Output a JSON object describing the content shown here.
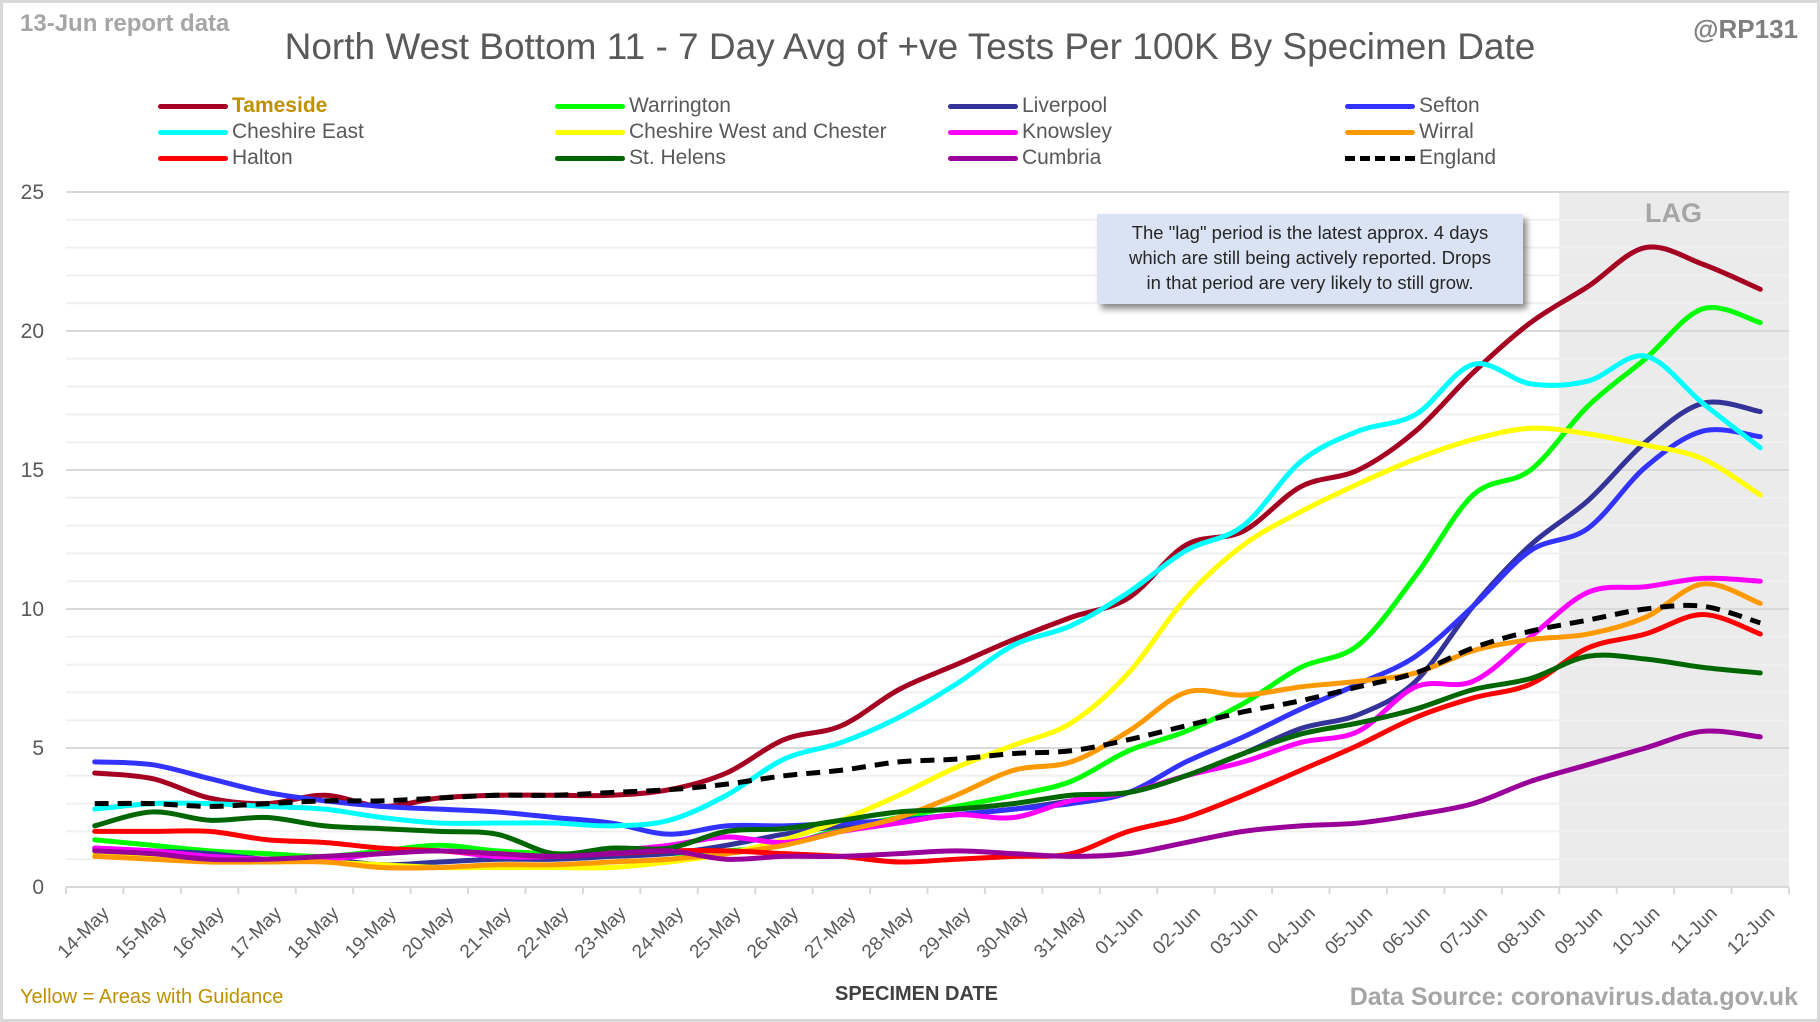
{
  "header": {
    "report_label": "13-Jun report data",
    "handle": "@RP131"
  },
  "annotation": {
    "lines": [
      "The \"lag\" period is the latest approx. 4 days",
      "which are still being actively reported.  Drops",
      "in that period are very likely to still grow."
    ],
    "lag_label": "LAG"
  },
  "footer": {
    "note": "Yellow = Areas with Guidance",
    "source": "Data Source: coronavirus.data.gov.uk"
  },
  "chart_data": {
    "type": "line",
    "title": "North West Bottom 11 - 7 Day Avg of +ve Tests Per 100K By Specimen Date",
    "xlabel": "SPECIMEN DATE",
    "ylabel": "",
    "ylim": [
      0,
      25
    ],
    "yticks": [
      "0",
      "5",
      "10",
      "15",
      "20",
      "25"
    ],
    "grid": true,
    "legend_position": "top",
    "lag_region_start": "09-Jun",
    "categories": [
      "14-May",
      "15-May",
      "16-May",
      "17-May",
      "18-May",
      "19-May",
      "20-May",
      "21-May",
      "22-May",
      "23-May",
      "24-May",
      "25-May",
      "26-May",
      "27-May",
      "28-May",
      "29-May",
      "30-May",
      "31-May",
      "01-Jun",
      "02-Jun",
      "03-Jun",
      "04-Jun",
      "05-Jun",
      "06-Jun",
      "07-Jun",
      "08-Jun",
      "09-Jun",
      "10-Jun",
      "11-Jun",
      "12-Jun"
    ],
    "series": [
      {
        "name": "Tameside",
        "color": "#a50021",
        "highlight": true,
        "values": [
          4.1,
          3.9,
          3.2,
          3.0,
          3.3,
          2.9,
          3.2,
          3.3,
          3.3,
          3.3,
          3.5,
          4.1,
          5.3,
          5.8,
          7.1,
          8.0,
          8.9,
          9.7,
          10.4,
          12.3,
          12.8,
          14.4,
          15.0,
          16.4,
          18.5,
          20.3,
          21.6,
          23.0,
          22.4,
          21.5
        ]
      },
      {
        "name": "Warrington",
        "color": "#00ff00",
        "values": [
          1.7,
          1.5,
          1.3,
          1.2,
          1.1,
          1.3,
          1.5,
          1.3,
          1.2,
          1.2,
          1.2,
          1.3,
          1.5,
          2.1,
          2.5,
          2.9,
          3.3,
          3.8,
          4.9,
          5.6,
          6.6,
          7.9,
          8.7,
          11.2,
          14.1,
          15.0,
          17.3,
          19.0,
          20.8,
          20.3
        ]
      },
      {
        "name": "Liverpool",
        "color": "#333399",
        "values": [
          1.4,
          1.3,
          1.2,
          1.0,
          1.0,
          0.8,
          0.9,
          1.0,
          1.0,
          1.1,
          1.2,
          1.5,
          1.9,
          2.2,
          2.4,
          2.6,
          2.8,
          3.1,
          3.4,
          4.0,
          4.8,
          5.7,
          6.2,
          7.4,
          10.1,
          12.3,
          13.9,
          16.0,
          17.4,
          17.1
        ]
      },
      {
        "name": "Sefton",
        "color": "#3333ff",
        "values": [
          4.5,
          4.4,
          3.9,
          3.4,
          3.1,
          2.9,
          2.8,
          2.7,
          2.5,
          2.3,
          1.9,
          2.2,
          2.2,
          2.3,
          2.4,
          2.6,
          2.8,
          3.0,
          3.4,
          4.5,
          5.4,
          6.4,
          7.3,
          8.3,
          10.1,
          12.1,
          12.9,
          15.1,
          16.4,
          16.2
        ]
      },
      {
        "name": "Cheshire East",
        "color": "#00ffff",
        "values": [
          2.8,
          3.0,
          3.0,
          2.9,
          2.8,
          2.5,
          2.3,
          2.3,
          2.3,
          2.2,
          2.4,
          3.3,
          4.6,
          5.2,
          6.1,
          7.3,
          8.7,
          9.4,
          10.6,
          12.1,
          13.0,
          15.3,
          16.4,
          17.0,
          18.8,
          18.1,
          18.2,
          19.1,
          17.4,
          15.8
        ]
      },
      {
        "name": "Cheshire West and Chester",
        "color": "#ffff00",
        "values": [
          1.2,
          1.1,
          1.0,
          1.0,
          0.9,
          0.8,
          0.7,
          0.7,
          0.7,
          0.7,
          0.9,
          1.2,
          1.7,
          2.4,
          3.3,
          4.3,
          5.1,
          5.9,
          7.7,
          10.4,
          12.3,
          13.5,
          14.5,
          15.4,
          16.1,
          16.5,
          16.3,
          15.9,
          15.4,
          14.1
        ]
      },
      {
        "name": "Knowsley",
        "color": "#ff00ff",
        "values": [
          1.4,
          1.3,
          1.1,
          1.0,
          1.0,
          1.2,
          1.3,
          1.1,
          1.1,
          1.3,
          1.5,
          1.8,
          1.6,
          2.0,
          2.3,
          2.6,
          2.5,
          3.1,
          3.4,
          4.0,
          4.5,
          5.2,
          5.6,
          7.2,
          7.4,
          9.0,
          10.6,
          10.8,
          11.1,
          11.0
        ]
      },
      {
        "name": "Wirral",
        "color": "#ff9900",
        "values": [
          1.1,
          1.0,
          0.9,
          0.9,
          0.9,
          0.7,
          0.7,
          0.8,
          0.8,
          0.9,
          1.0,
          1.2,
          1.5,
          2.0,
          2.5,
          3.3,
          4.2,
          4.5,
          5.6,
          7.0,
          6.9,
          7.2,
          7.4,
          7.7,
          8.5,
          8.9,
          9.1,
          9.7,
          10.9,
          10.2
        ]
      },
      {
        "name": "Halton",
        "color": "#ff0000",
        "values": [
          2.0,
          2.0,
          2.0,
          1.7,
          1.6,
          1.4,
          1.3,
          1.2,
          1.1,
          1.2,
          1.3,
          1.3,
          1.2,
          1.1,
          0.9,
          1.0,
          1.1,
          1.2,
          2.0,
          2.5,
          3.3,
          4.2,
          5.1,
          6.1,
          6.8,
          7.3,
          8.6,
          9.1,
          9.8,
          9.1
        ]
      },
      {
        "name": "St. Helens",
        "color": "#006600",
        "values": [
          2.2,
          2.7,
          2.4,
          2.5,
          2.2,
          2.1,
          2.0,
          1.9,
          1.2,
          1.4,
          1.4,
          2.0,
          2.1,
          2.4,
          2.7,
          2.8,
          3.0,
          3.3,
          3.4,
          4.0,
          4.8,
          5.5,
          5.9,
          6.4,
          7.1,
          7.5,
          8.3,
          8.2,
          7.9,
          7.7
        ]
      },
      {
        "name": "Cumbria",
        "color": "#990099",
        "values": [
          1.3,
          1.2,
          1.0,
          1.0,
          1.1,
          1.2,
          1.3,
          1.2,
          1.1,
          1.2,
          1.3,
          1.0,
          1.1,
          1.1,
          1.2,
          1.3,
          1.2,
          1.1,
          1.2,
          1.6,
          2.0,
          2.2,
          2.3,
          2.6,
          3.0,
          3.8,
          4.4,
          5.0,
          5.6,
          5.4
        ]
      },
      {
        "name": "England",
        "color": "#000000",
        "dashed": true,
        "values": [
          3.0,
          3.0,
          2.9,
          3.0,
          3.1,
          3.1,
          3.2,
          3.3,
          3.3,
          3.4,
          3.5,
          3.7,
          4.0,
          4.2,
          4.5,
          4.6,
          4.8,
          4.9,
          5.3,
          5.8,
          6.3,
          6.7,
          7.2,
          7.7,
          8.6,
          9.2,
          9.6,
          10.0,
          10.1,
          9.5
        ]
      }
    ]
  }
}
